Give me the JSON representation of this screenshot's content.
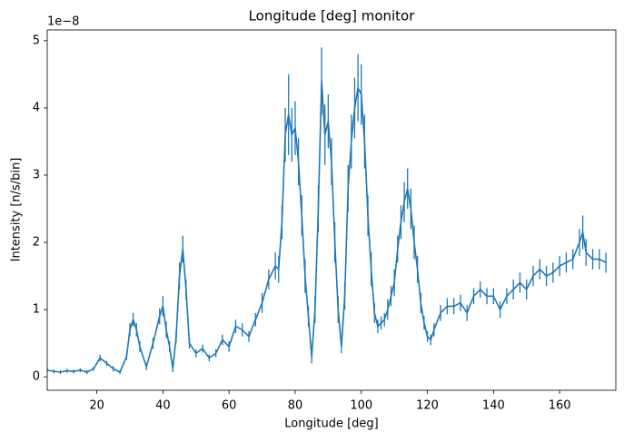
{
  "chart_data": {
    "type": "errorbar-line",
    "title": "Longitude [deg] monitor",
    "x_label": "Longitude [deg]",
    "y_label": "Intensity [n/s/bin]",
    "y_offset_label": "1e−8",
    "color": "#1f77b4",
    "xlim": [
      5,
      177
    ],
    "ylim": [
      -0.2,
      5.16
    ],
    "xticks": [
      20,
      40,
      60,
      80,
      100,
      120,
      140,
      160
    ],
    "yticks": [
      0,
      1,
      2,
      3,
      4,
      5
    ],
    "x": [
      5,
      7,
      9,
      11,
      13,
      15,
      17,
      19,
      21,
      23,
      25,
      27,
      29,
      30,
      31,
      32,
      33,
      35,
      37,
      39,
      40,
      41,
      42,
      43,
      44,
      45,
      46,
      47,
      48,
      50,
      52,
      54,
      56,
      58,
      60,
      62,
      64,
      66,
      68,
      70,
      72,
      74,
      75,
      76,
      77,
      78,
      79,
      80,
      81,
      82,
      83,
      84,
      85,
      86,
      87,
      88,
      89,
      90,
      91,
      92,
      93,
      94,
      95,
      96,
      97,
      98,
      99,
      100,
      101,
      102,
      103,
      104,
      105,
      106,
      107,
      108,
      109,
      110,
      111,
      112,
      113,
      114,
      115,
      116,
      117,
      118,
      119,
      120,
      121,
      122,
      124,
      126,
      128,
      130,
      132,
      134,
      136,
      138,
      140,
      142,
      144,
      146,
      148,
      150,
      152,
      154,
      156,
      158,
      160,
      162,
      164,
      166,
      167,
      168,
      170,
      172,
      174
    ],
    "values": [
      0.1,
      0.08,
      0.07,
      0.09,
      0.08,
      0.1,
      0.07,
      0.12,
      0.28,
      0.2,
      0.12,
      0.07,
      0.3,
      0.7,
      0.85,
      0.7,
      0.45,
      0.15,
      0.5,
      0.9,
      1.05,
      0.7,
      0.45,
      0.12,
      0.6,
      1.5,
      1.9,
      1.3,
      0.5,
      0.35,
      0.42,
      0.28,
      0.35,
      0.55,
      0.45,
      0.75,
      0.7,
      0.6,
      0.85,
      1.1,
      1.45,
      1.65,
      1.6,
      2.3,
      3.6,
      3.9,
      3.6,
      3.7,
      3.2,
      2.4,
      1.5,
      0.9,
      0.3,
      1.0,
      2.5,
      4.4,
      3.6,
      3.8,
      3.2,
      2.0,
      1.0,
      0.45,
      1.2,
      2.8,
      3.5,
      4.0,
      4.3,
      4.2,
      3.5,
      2.4,
      1.6,
      0.95,
      0.75,
      0.8,
      0.85,
      1.0,
      1.2,
      1.4,
      1.9,
      2.3,
      2.6,
      2.8,
      2.5,
      2.0,
      1.6,
      1.1,
      0.8,
      0.6,
      0.55,
      0.7,
      0.95,
      1.05,
      1.05,
      1.1,
      0.95,
      1.2,
      1.3,
      1.2,
      1.2,
      1.0,
      1.2,
      1.3,
      1.4,
      1.3,
      1.5,
      1.6,
      1.5,
      1.55,
      1.65,
      1.7,
      1.75,
      2.0,
      2.15,
      1.85,
      1.75,
      1.75,
      1.7
    ],
    "errors": [
      0.03,
      0.03,
      0.03,
      0.03,
      0.03,
      0.03,
      0.03,
      0.03,
      0.05,
      0.04,
      0.04,
      0.03,
      0.05,
      0.1,
      0.1,
      0.1,
      0.08,
      0.05,
      0.08,
      0.12,
      0.15,
      0.12,
      0.08,
      0.05,
      0.1,
      0.2,
      0.2,
      0.15,
      0.08,
      0.06,
      0.06,
      0.05,
      0.06,
      0.08,
      0.08,
      0.1,
      0.1,
      0.08,
      0.1,
      0.15,
      0.15,
      0.2,
      0.2,
      0.25,
      0.4,
      0.6,
      0.4,
      0.4,
      0.35,
      0.3,
      0.25,
      0.15,
      0.1,
      0.2,
      0.35,
      0.5,
      0.45,
      0.4,
      0.35,
      0.3,
      0.2,
      0.1,
      0.2,
      0.35,
      0.4,
      0.45,
      0.5,
      0.45,
      0.4,
      0.3,
      0.25,
      0.15,
      0.1,
      0.1,
      0.1,
      0.15,
      0.15,
      0.2,
      0.2,
      0.25,
      0.3,
      0.3,
      0.3,
      0.25,
      0.2,
      0.15,
      0.1,
      0.08,
      0.08,
      0.1,
      0.12,
      0.12,
      0.12,
      0.12,
      0.12,
      0.12,
      0.12,
      0.12,
      0.12,
      0.12,
      0.12,
      0.15,
      0.15,
      0.15,
      0.15,
      0.15,
      0.15,
      0.15,
      0.15,
      0.15,
      0.15,
      0.2,
      0.25,
      0.2,
      0.15,
      0.15,
      0.15
    ]
  }
}
